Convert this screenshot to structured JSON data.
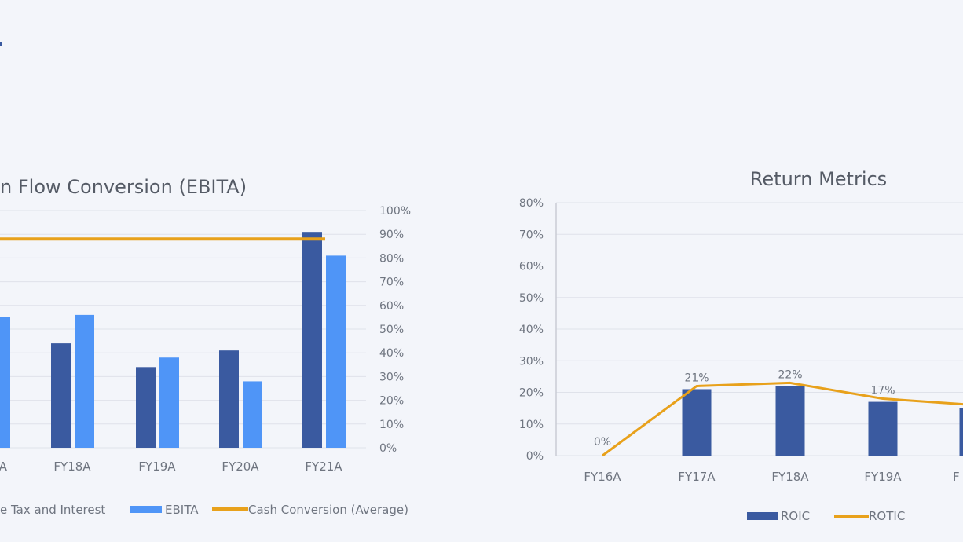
{
  "chart_data": [
    {
      "type": "bar",
      "title": "n Flow Conversion (EBITA)",
      "categories": [
        "A",
        "FY18A",
        "FY19A",
        "FY20A",
        "FY21A"
      ],
      "series": [
        {
          "name": "e Tax and Interest",
          "kind": "bar",
          "values": [
            null,
            44,
            34,
            41,
            91
          ]
        },
        {
          "name": "EBITA",
          "kind": "bar",
          "values": [
            55,
            56,
            38,
            28,
            81
          ]
        },
        {
          "name": "Cash Conversion (Average)",
          "kind": "line",
          "values": [
            88,
            88,
            88,
            88,
            88
          ]
        }
      ],
      "y2_ticks": [
        "0%",
        "10%",
        "20%",
        "30%",
        "40%",
        "50%",
        "60%",
        "70%",
        "80%",
        "90%",
        "100%"
      ],
      "y2lim": [
        0,
        100
      ],
      "colors": {
        "bar1": "#3a5aa0",
        "bar2": "#4f95f7",
        "line": "#e8a11b"
      },
      "grid": true,
      "legend": "bottom"
    },
    {
      "type": "bar",
      "title": "Return Metrics",
      "categories": [
        "FY16A",
        "FY17A",
        "FY18A",
        "FY19A",
        "F"
      ],
      "series": [
        {
          "name": "ROIC",
          "kind": "bar",
          "values": [
            0,
            21,
            22,
            17,
            15
          ],
          "labels": [
            "0%",
            "21%",
            "22%",
            "17%",
            ""
          ]
        },
        {
          "name": "ROTIC",
          "kind": "line",
          "values": [
            0,
            22,
            23,
            18,
            16
          ]
        }
      ],
      "y_ticks": [
        "0%",
        "10%",
        "20%",
        "30%",
        "40%",
        "50%",
        "60%",
        "70%",
        "80%"
      ],
      "ylim": [
        0,
        80
      ],
      "colors": {
        "bar1": "#3a5aa0",
        "line": "#e8a11b"
      },
      "grid": true,
      "legend": "bottom"
    }
  ]
}
